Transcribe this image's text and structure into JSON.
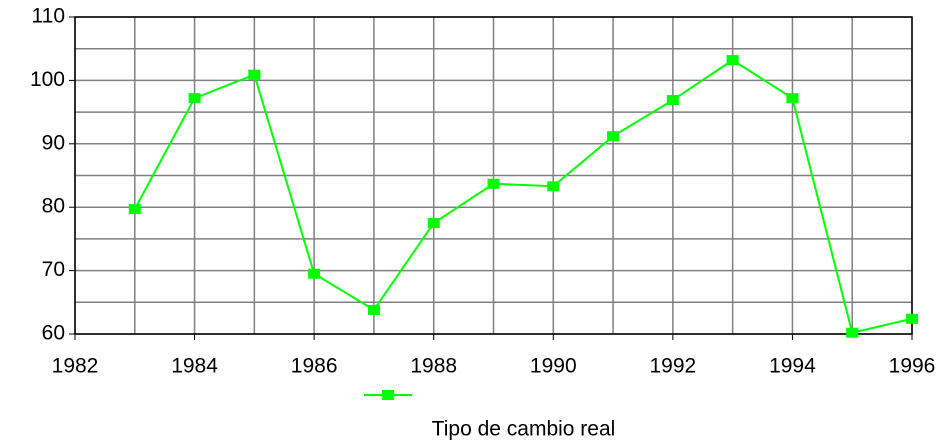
{
  "chart_data": {
    "type": "line",
    "x": [
      1983,
      1984,
      1985,
      1986,
      1987,
      1988,
      1989,
      1990,
      1991,
      1992,
      1993,
      1994,
      1995,
      1996
    ],
    "series": [
      {
        "name": "Tipo de cambio real",
        "color": "#00ff00",
        "values": [
          79.7,
          97.2,
          100.9,
          69.5,
          63.8,
          77.5,
          83.7,
          83.3,
          91.2,
          96.9,
          103.2,
          97.2,
          60.2,
          62.4
        ]
      }
    ],
    "xlim": [
      1982,
      1996
    ],
    "xticks": [
      1982,
      1984,
      1986,
      1988,
      1990,
      1992,
      1994,
      1996
    ],
    "x_minor_ticks": [
      1983,
      1985,
      1987,
      1989,
      1991,
      1993,
      1995
    ],
    "ylim": [
      60,
      110
    ],
    "yticks": [
      60,
      70,
      80,
      90,
      100,
      110
    ],
    "y_minor_ticks": [
      65,
      75,
      85,
      95,
      105
    ],
    "grid": true,
    "legend": "bottom"
  }
}
